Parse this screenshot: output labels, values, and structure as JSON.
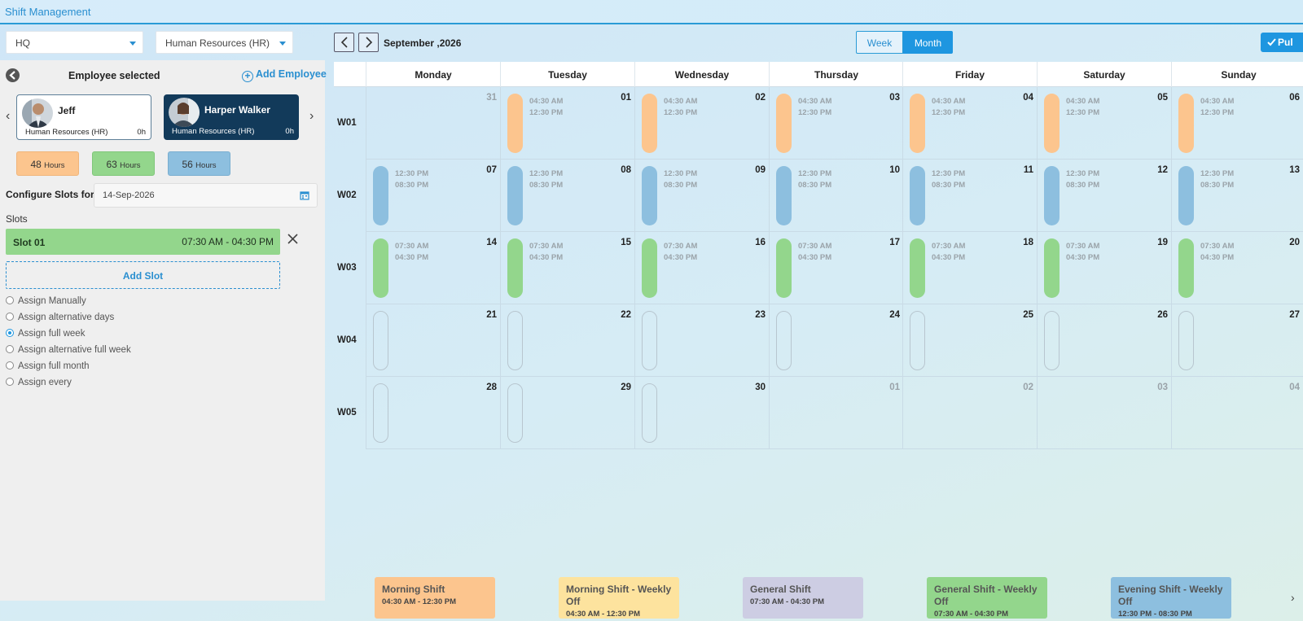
{
  "app": {
    "title": "Shift Management"
  },
  "filters": {
    "location": "HQ",
    "department": "Human Resources (HR)"
  },
  "calendar_nav": {
    "period": "September ,2026",
    "view_week": "Week",
    "view_month": "Month",
    "active_view": "Month",
    "publish_label": "Pul"
  },
  "panel": {
    "title": "Employee selected",
    "add_employee": "Add Employee",
    "employees": [
      {
        "name": "Jeff",
        "department": "Human Resources (HR)",
        "hours": "0h"
      },
      {
        "name": "Harper Walker",
        "department": "Human Resources (HR)",
        "hours": "0h"
      }
    ],
    "hour_totals": [
      {
        "value": "48",
        "unit": "Hours",
        "color": "#fcc58e"
      },
      {
        "value": "63",
        "unit": "Hours",
        "color": "#93d68c"
      },
      {
        "value": "56",
        "unit": "Hours",
        "color": "#8dbfdf"
      }
    ],
    "configure_label": "Configure Slots for",
    "configure_date": "14-Sep-2026",
    "slots_label": "Slots",
    "slot": {
      "name": "Slot 01",
      "time": "07:30 AM - 04:30 PM"
    },
    "add_slot": "Add Slot",
    "assign_options": [
      {
        "label": "Assign Manually",
        "selected": false
      },
      {
        "label": "Assign alternative days",
        "selected": false
      },
      {
        "label": "Assign full week",
        "selected": true
      },
      {
        "label": "Assign alternative full week",
        "selected": false
      },
      {
        "label": "Assign full month",
        "selected": false
      },
      {
        "label": "Assign every",
        "selected": false
      }
    ]
  },
  "calendar": {
    "days": [
      "Monday",
      "Tuesday",
      "Wednesday",
      "Thursday",
      "Friday",
      "Saturday",
      "Sunday"
    ],
    "weeks": [
      {
        "label": "W01",
        "cells": [
          {
            "num": "31",
            "muted": true,
            "shift": null
          },
          {
            "num": "01",
            "muted": false,
            "shift": {
              "color": "#fcc58e",
              "start": "04:30 AM",
              "end": "12:30 PM"
            }
          },
          {
            "num": "02",
            "muted": false,
            "shift": {
              "color": "#fcc58e",
              "start": "04:30 AM",
              "end": "12:30 PM"
            }
          },
          {
            "num": "03",
            "muted": false,
            "shift": {
              "color": "#fcc58e",
              "start": "04:30 AM",
              "end": "12:30 PM"
            }
          },
          {
            "num": "04",
            "muted": false,
            "shift": {
              "color": "#fcc58e",
              "start": "04:30 AM",
              "end": "12:30 PM"
            }
          },
          {
            "num": "05",
            "muted": false,
            "shift": {
              "color": "#fcc58e",
              "start": "04:30 AM",
              "end": "12:30 PM"
            }
          },
          {
            "num": "06",
            "muted": false,
            "shift": {
              "color": "#fcc58e",
              "start": "04:30 AM",
              "end": "12:30 PM"
            }
          }
        ]
      },
      {
        "label": "W02",
        "cells": [
          {
            "num": "07",
            "muted": false,
            "shift": {
              "color": "#8dbfdf",
              "start": "12:30 PM",
              "end": "08:30 PM"
            }
          },
          {
            "num": "08",
            "muted": false,
            "shift": {
              "color": "#8dbfdf",
              "start": "12:30 PM",
              "end": "08:30 PM"
            }
          },
          {
            "num": "09",
            "muted": false,
            "shift": {
              "color": "#8dbfdf",
              "start": "12:30 PM",
              "end": "08:30 PM"
            }
          },
          {
            "num": "10",
            "muted": false,
            "shift": {
              "color": "#8dbfdf",
              "start": "12:30 PM",
              "end": "08:30 PM"
            }
          },
          {
            "num": "11",
            "muted": false,
            "shift": {
              "color": "#8dbfdf",
              "start": "12:30 PM",
              "end": "08:30 PM"
            }
          },
          {
            "num": "12",
            "muted": false,
            "shift": {
              "color": "#8dbfdf",
              "start": "12:30 PM",
              "end": "08:30 PM"
            }
          },
          {
            "num": "13",
            "muted": false,
            "shift": {
              "color": "#8dbfdf",
              "start": "12:30 PM",
              "end": "08:30 PM"
            }
          }
        ]
      },
      {
        "label": "W03",
        "cells": [
          {
            "num": "14",
            "muted": false,
            "shift": {
              "color": "#93d68c",
              "start": "07:30 AM",
              "end": "04:30 PM"
            }
          },
          {
            "num": "15",
            "muted": false,
            "shift": {
              "color": "#93d68c",
              "start": "07:30 AM",
              "end": "04:30 PM"
            }
          },
          {
            "num": "16",
            "muted": false,
            "shift": {
              "color": "#93d68c",
              "start": "07:30 AM",
              "end": "04:30 PM"
            }
          },
          {
            "num": "17",
            "muted": false,
            "shift": {
              "color": "#93d68c",
              "start": "07:30 AM",
              "end": "04:30 PM"
            }
          },
          {
            "num": "18",
            "muted": false,
            "shift": {
              "color": "#93d68c",
              "start": "07:30 AM",
              "end": "04:30 PM"
            }
          },
          {
            "num": "19",
            "muted": false,
            "shift": {
              "color": "#93d68c",
              "start": "07:30 AM",
              "end": "04:30 PM"
            }
          },
          {
            "num": "20",
            "muted": false,
            "shift": {
              "color": "#93d68c",
              "start": "07:30 AM",
              "end": "04:30 PM"
            }
          }
        ]
      },
      {
        "label": "W04",
        "cells": [
          {
            "num": "21",
            "muted": false,
            "shift": "empty"
          },
          {
            "num": "22",
            "muted": false,
            "shift": "empty"
          },
          {
            "num": "23",
            "muted": false,
            "shift": "empty"
          },
          {
            "num": "24",
            "muted": false,
            "shift": "empty"
          },
          {
            "num": "25",
            "muted": false,
            "shift": "empty"
          },
          {
            "num": "26",
            "muted": false,
            "shift": "empty"
          },
          {
            "num": "27",
            "muted": false,
            "shift": "empty"
          }
        ]
      },
      {
        "label": "W05",
        "cells": [
          {
            "num": "28",
            "muted": false,
            "shift": "empty"
          },
          {
            "num": "29",
            "muted": false,
            "shift": "empty"
          },
          {
            "num": "30",
            "muted": false,
            "shift": "empty"
          },
          {
            "num": "01",
            "muted": true,
            "shift": null
          },
          {
            "num": "02",
            "muted": true,
            "shift": null
          },
          {
            "num": "03",
            "muted": true,
            "shift": null
          },
          {
            "num": "04",
            "muted": true,
            "shift": null
          }
        ]
      }
    ]
  },
  "legend": [
    {
      "name": "Morning Shift",
      "time": "04:30 AM - 12:30 PM",
      "color": "#fcc58e"
    },
    {
      "name": "Morning Shift - Weekly Off",
      "time": "04:30 AM - 12:30 PM",
      "color": "#fde39e"
    },
    {
      "name": "General Shift",
      "time": "07:30 AM - 04:30 PM",
      "color": "#cdcde3"
    },
    {
      "name": "General Shift - Weekly Off",
      "time": "07:30 AM - 04:30 PM",
      "color": "#93d68c"
    },
    {
      "name": "Evening Shift - Weekly Off",
      "time": "12:30 PM - 08:30 PM",
      "color": "#8dbfdf"
    }
  ]
}
